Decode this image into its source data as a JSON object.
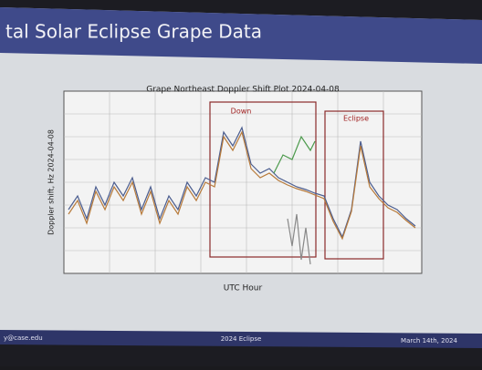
{
  "header": {
    "title": "tal Solar Eclipse Grape Data"
  },
  "figure": {
    "title": "Grape Northeast Doppler Shift Plot 2024-04-08",
    "y_label": "Doppler shift, Hz 2024-04-08",
    "x_label": "UTC Hour",
    "annotations": [
      "Down",
      "Eclipse"
    ]
  },
  "footer": {
    "left": "y@case.edu",
    "center": "2024 Eclipse",
    "right": "March 14th, 2024"
  }
}
